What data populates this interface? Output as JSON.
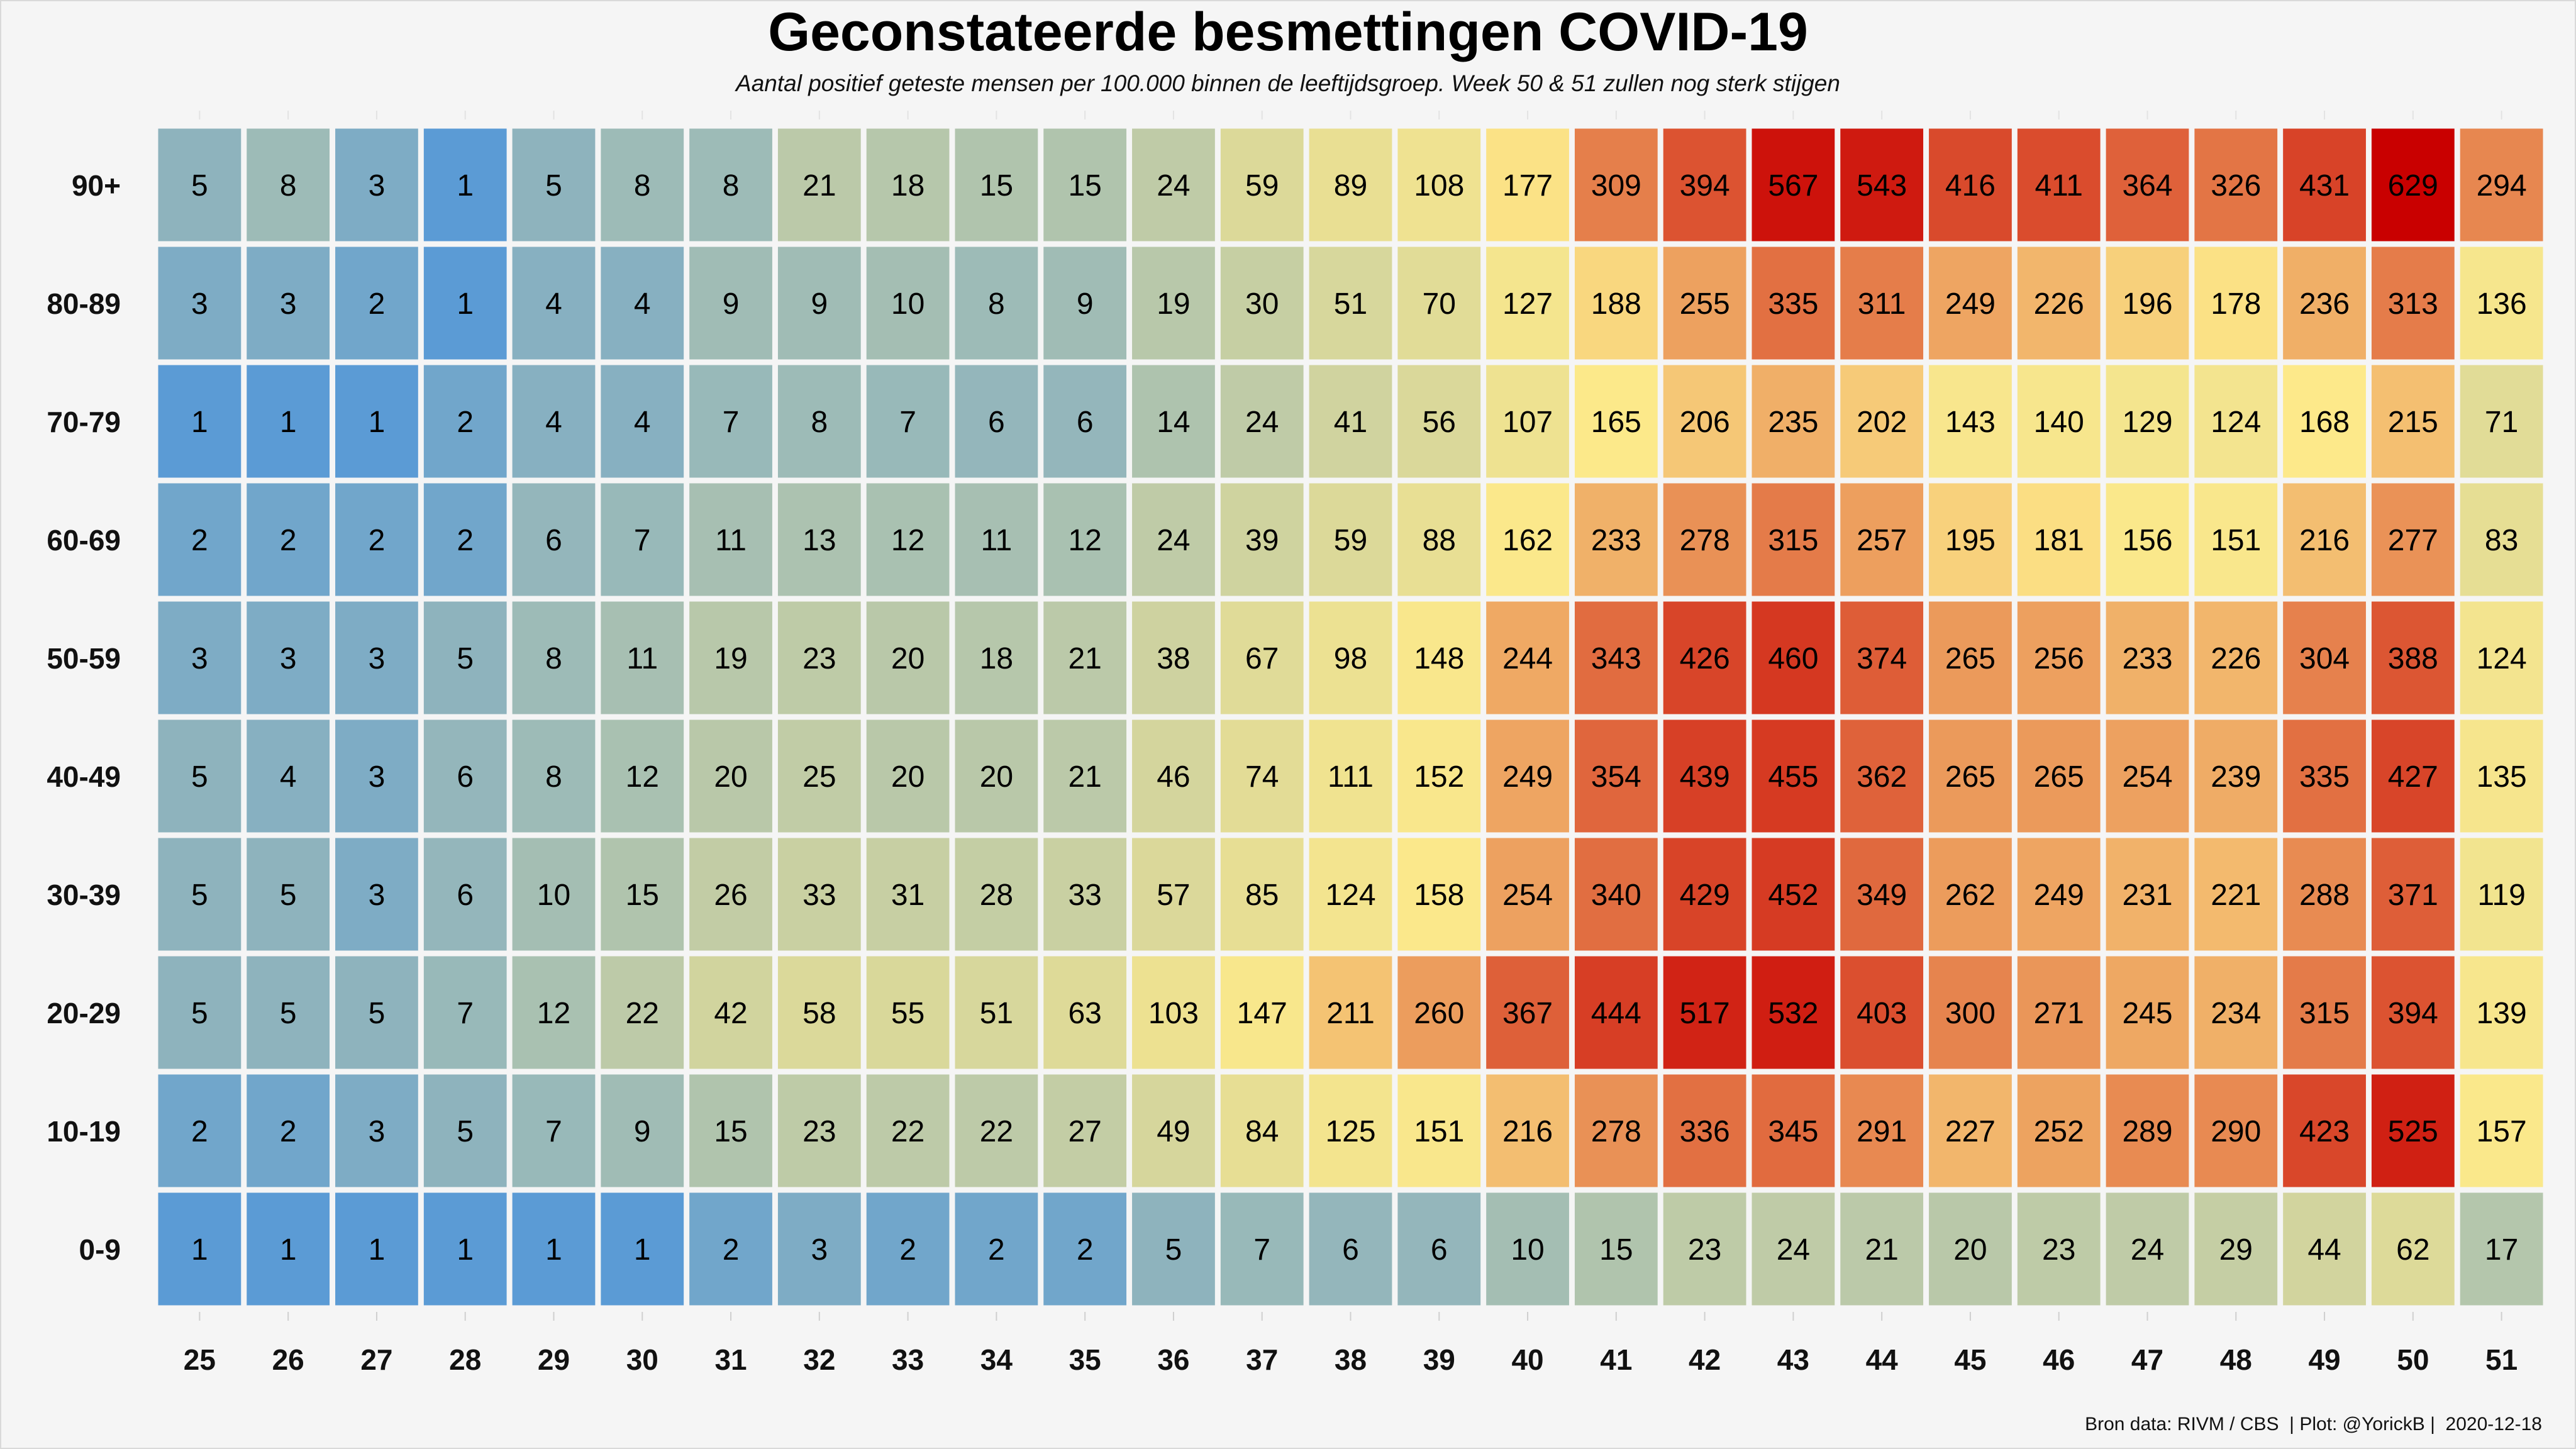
{
  "chart_data": {
    "type": "heatmap",
    "title": "Geconstateerde besmettingen COVID-19",
    "subtitle": "Aantal positief geteste mensen per 100.000 binnen de leeftijdsgroep. Week 50 & 51 zullen nog sterk stijgen",
    "xlabel": "",
    "ylabel": "",
    "x": [
      "25",
      "26",
      "27",
      "28",
      "29",
      "30",
      "31",
      "32",
      "33",
      "34",
      "35",
      "36",
      "37",
      "38",
      "39",
      "40",
      "41",
      "42",
      "43",
      "44",
      "45",
      "46",
      "47",
      "48",
      "49",
      "50",
      "51"
    ],
    "y": [
      "90+",
      "80-89",
      "70-79",
      "60-69",
      "50-59",
      "40-49",
      "30-39",
      "20-29",
      "10-19",
      "0-9"
    ],
    "values": [
      [
        5,
        8,
        3,
        1,
        5,
        8,
        8,
        21,
        18,
        15,
        15,
        24,
        59,
        89,
        108,
        177,
        309,
        394,
        567,
        543,
        416,
        411,
        364,
        326,
        431,
        629,
        294
      ],
      [
        3,
        3,
        2,
        1,
        4,
        4,
        9,
        9,
        10,
        8,
        9,
        19,
        30,
        51,
        70,
        127,
        188,
        255,
        335,
        311,
        249,
        226,
        196,
        178,
        236,
        313,
        136
      ],
      [
        1,
        1,
        1,
        2,
        4,
        4,
        7,
        8,
        7,
        6,
        6,
        14,
        24,
        41,
        56,
        107,
        165,
        206,
        235,
        202,
        143,
        140,
        129,
        124,
        168,
        215,
        71
      ],
      [
        2,
        2,
        2,
        2,
        6,
        7,
        11,
        13,
        12,
        11,
        12,
        24,
        39,
        59,
        88,
        162,
        233,
        278,
        315,
        257,
        195,
        181,
        156,
        151,
        216,
        277,
        83
      ],
      [
        3,
        3,
        3,
        5,
        8,
        11,
        19,
        23,
        20,
        18,
        21,
        38,
        67,
        98,
        148,
        244,
        343,
        426,
        460,
        374,
        265,
        256,
        233,
        226,
        304,
        388,
        124
      ],
      [
        5,
        4,
        3,
        6,
        8,
        12,
        20,
        25,
        20,
        20,
        21,
        46,
        74,
        111,
        152,
        249,
        354,
        439,
        455,
        362,
        265,
        265,
        254,
        239,
        335,
        427,
        135
      ],
      [
        5,
        5,
        3,
        6,
        10,
        15,
        26,
        33,
        31,
        28,
        33,
        57,
        85,
        124,
        158,
        254,
        340,
        429,
        452,
        349,
        262,
        249,
        231,
        221,
        288,
        371,
        119
      ],
      [
        5,
        5,
        5,
        7,
        12,
        22,
        42,
        58,
        55,
        51,
        63,
        103,
        147,
        211,
        260,
        367,
        444,
        517,
        532,
        403,
        300,
        271,
        245,
        234,
        315,
        394,
        139
      ],
      [
        2,
        2,
        3,
        5,
        7,
        9,
        15,
        23,
        22,
        22,
        27,
        49,
        84,
        125,
        151,
        216,
        278,
        336,
        345,
        291,
        227,
        252,
        289,
        290,
        423,
        525,
        157
      ],
      [
        1,
        1,
        1,
        1,
        1,
        1,
        2,
        3,
        2,
        2,
        2,
        5,
        7,
        6,
        6,
        10,
        15,
        23,
        24,
        21,
        20,
        23,
        24,
        29,
        44,
        62,
        17
      ]
    ],
    "color_scale": {
      "low": "#5b9bd5",
      "mid": "#fde98a",
      "high": "#c90000",
      "scale": "log"
    },
    "grid": false,
    "legend": "none"
  },
  "caption": "Bron data: RIVM / CBS  | Plot: @YorickB |  2020-12-18",
  "colors": {
    "background": "#f5f5f5",
    "tile_border": "#ffffff",
    "text": "#000000"
  }
}
